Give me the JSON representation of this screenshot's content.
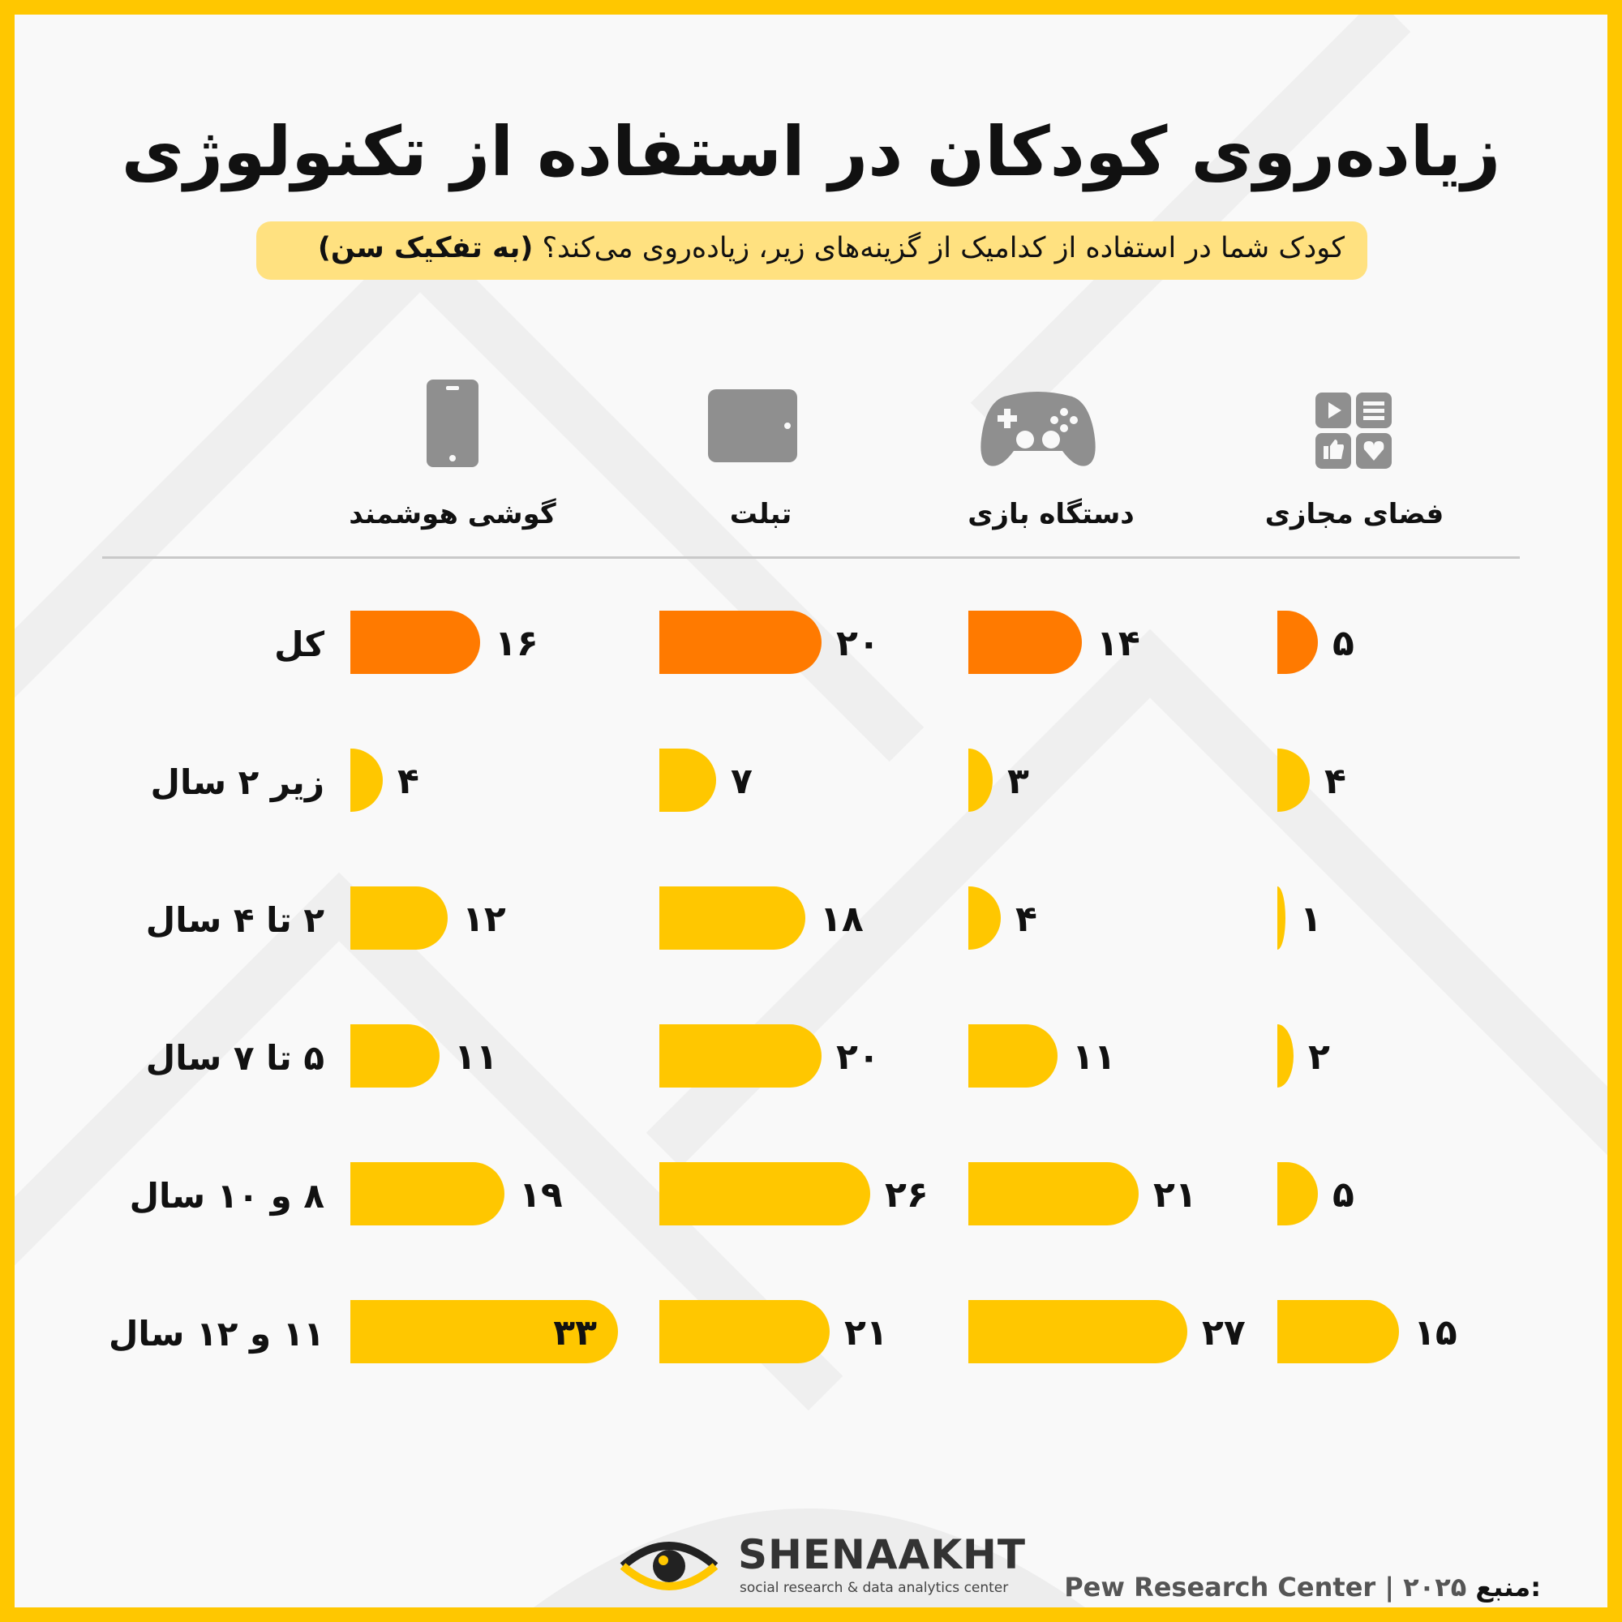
{
  "title": "زیاده‌روی کودکان در استفاده از تکنولوژی",
  "subtitle": {
    "question": "کودک شما در استفاده از کدامیک از گزینه‌های زیر، زیاده‌روی می‌کند؟",
    "qualifier": "(به تفکیک سن)"
  },
  "columns": [
    {
      "label": "گوشی هوشمند",
      "icon": "smartphone-icon"
    },
    {
      "label": "تبلت",
      "icon": "tablet-icon"
    },
    {
      "label": "دستگاه بازی",
      "icon": "gamepad-icon"
    },
    {
      "label": "فضای مجازی",
      "icon": "social-media-icon"
    }
  ],
  "chart_data": {
    "type": "bar",
    "categories": [
      "کل",
      "زیر ۲ سال",
      "۲ تا ۴ سال",
      "۵ تا ۷ سال",
      "۸ و ۱۰ سال",
      "۱۱ و ۱۲ سال"
    ],
    "series": [
      {
        "name": "گوشی هوشمند",
        "values": [
          16,
          4,
          12,
          11,
          19,
          33
        ],
        "labels": [
          "۱۶",
          "۴",
          "۱۲",
          "۱۱",
          "۱۹",
          "۳۳"
        ]
      },
      {
        "name": "تبلت",
        "values": [
          20,
          7,
          18,
          20,
          26,
          21
        ],
        "labels": [
          "۲۰",
          "۷",
          "۱۸",
          "۲۰",
          "۲۶",
          "۲۱"
        ]
      },
      {
        "name": "دستگاه بازی",
        "values": [
          14,
          3,
          4,
          11,
          21,
          27
        ],
        "labels": [
          "۱۴",
          "۳",
          "۴",
          "۱۱",
          "۲۱",
          "۲۷"
        ]
      },
      {
        "name": "فضای مجازی",
        "values": [
          5,
          4,
          1,
          2,
          5,
          15
        ],
        "labels": [
          "۵",
          "۴",
          "۱",
          "۲",
          "۵",
          "۱۵"
        ]
      }
    ],
    "highlight_colors": {
      "total": "#FF7A00",
      "age": "#FFC700"
    }
  },
  "footer": {
    "brand_name": "SHENAAKHT",
    "brand_tagline": "social research & data analytics center",
    "source_label": "منبع:",
    "source_text": "Pew Research Center | ۲۰۲۵"
  }
}
